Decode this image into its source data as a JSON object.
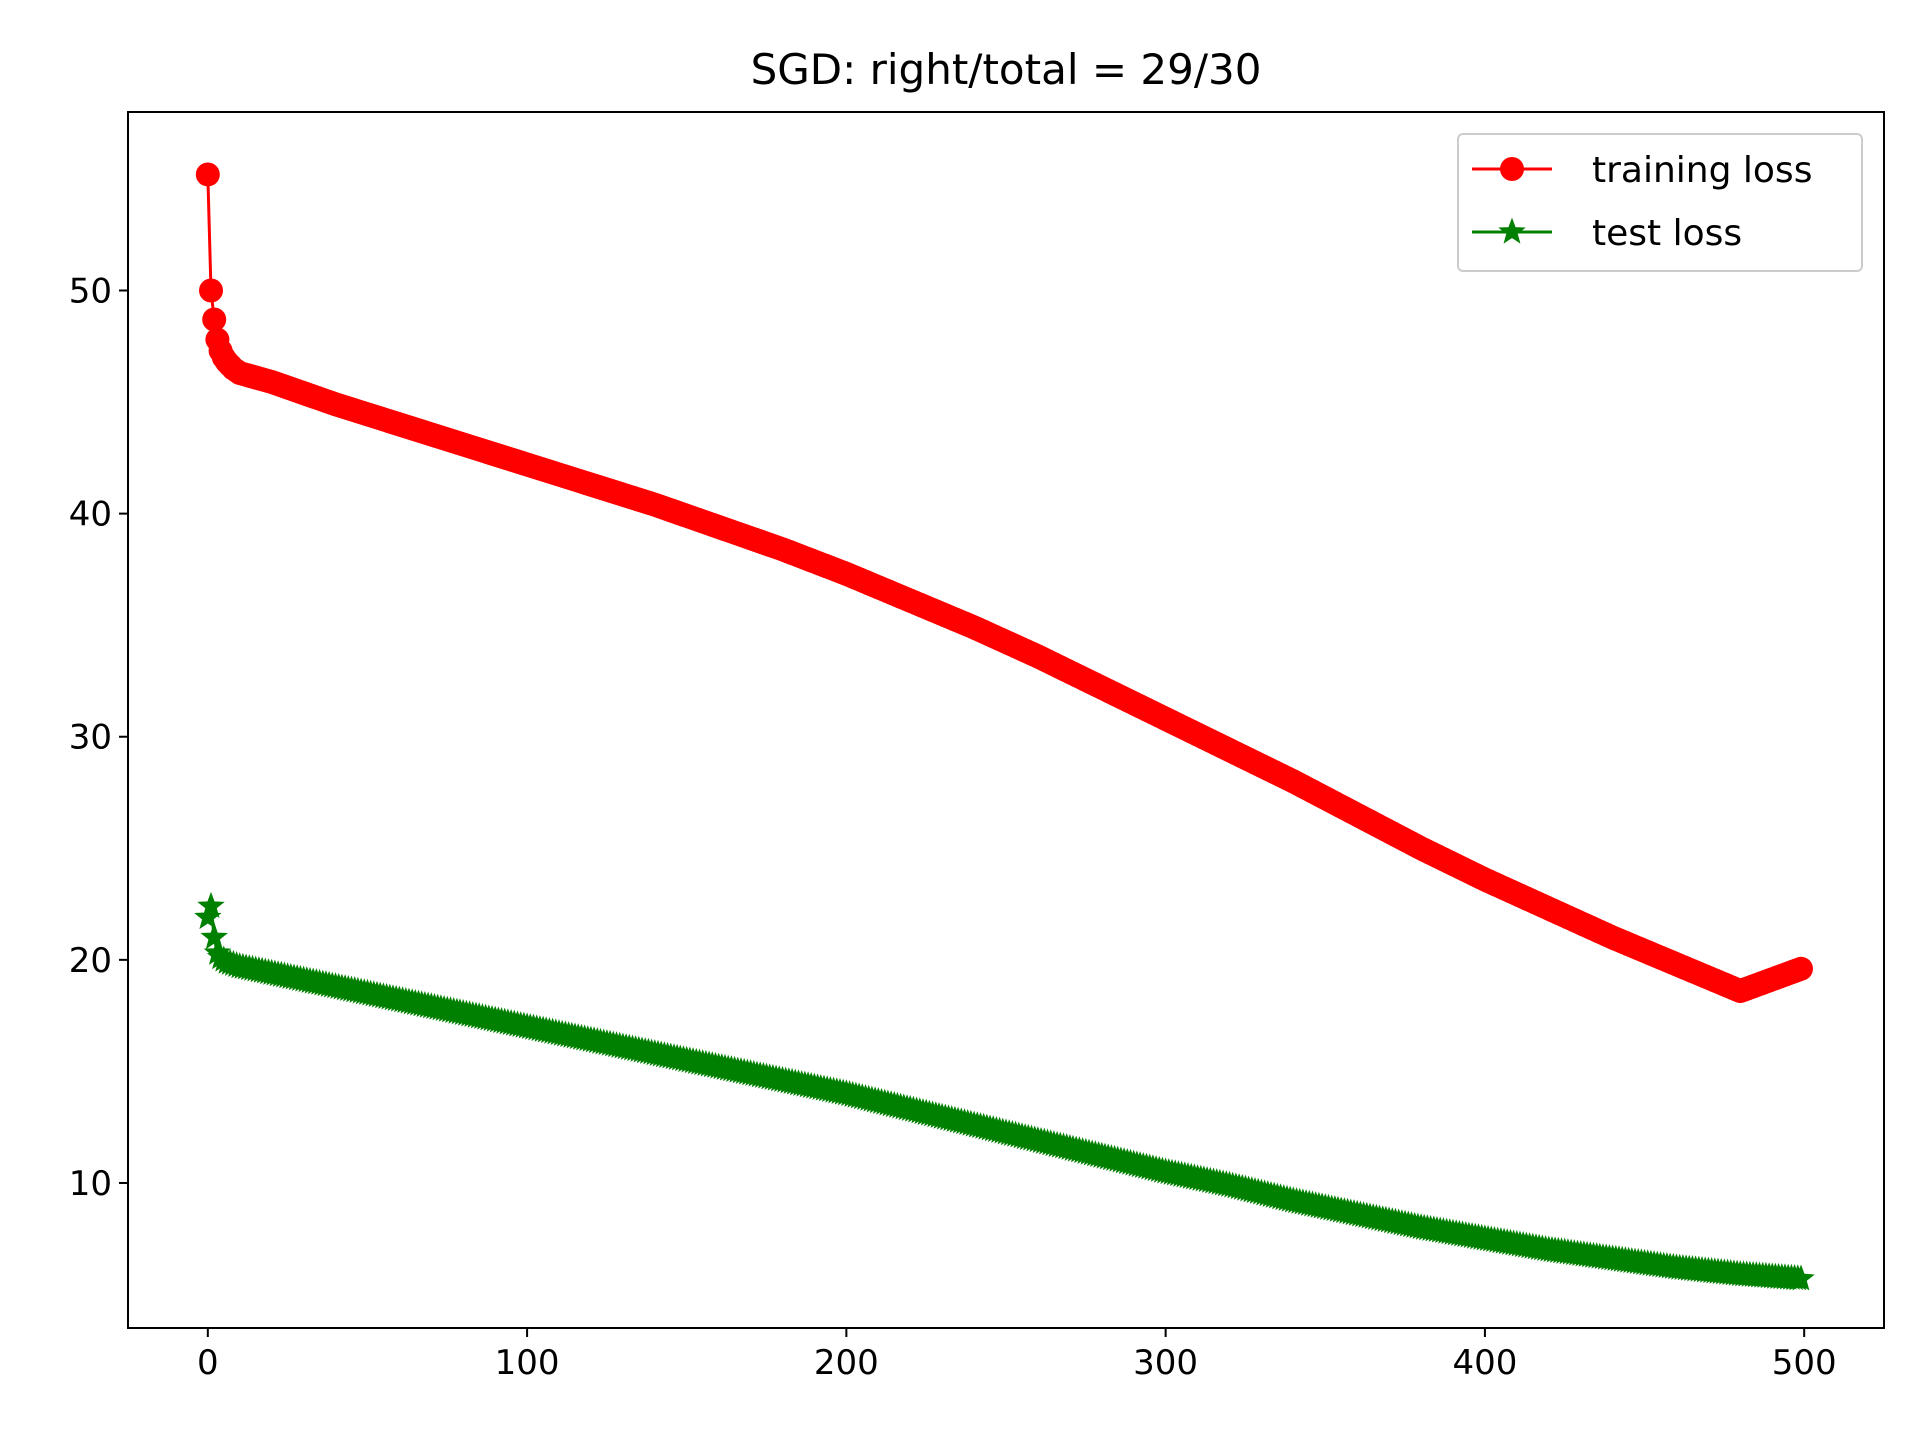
{
  "chart_data": {
    "type": "line",
    "title": "SGD: right/total = 29/30",
    "xlabel": "",
    "ylabel": "",
    "xlim": [
      -25,
      525
    ],
    "ylim": [
      3.5,
      58
    ],
    "xticks": [
      0,
      100,
      200,
      300,
      400,
      500
    ],
    "yticks": [
      10,
      20,
      30,
      40,
      50
    ],
    "grid": false,
    "legend_position": "upper right",
    "series": [
      {
        "name": "training loss",
        "color": "#ff0000",
        "marker": "circle",
        "x": [
          0,
          1,
          2,
          3,
          4,
          5,
          6,
          8,
          10,
          20,
          40,
          60,
          80,
          100,
          120,
          140,
          160,
          180,
          200,
          220,
          240,
          260,
          280,
          300,
          320,
          340,
          360,
          380,
          400,
          420,
          440,
          460,
          480,
          499
        ],
        "y": [
          55.2,
          50.0,
          48.7,
          47.8,
          47.3,
          47.0,
          46.8,
          46.5,
          46.3,
          45.9,
          44.9,
          44.0,
          43.1,
          42.2,
          41.3,
          40.4,
          39.4,
          38.4,
          37.3,
          36.1,
          34.9,
          33.6,
          32.2,
          30.8,
          29.4,
          28.0,
          26.5,
          25.0,
          23.6,
          22.3,
          21.0,
          19.8,
          18.6,
          19.6
        ]
      },
      {
        "name": "test loss",
        "color": "#008000",
        "marker": "star",
        "x": [
          0,
          1,
          2,
          3,
          4,
          5,
          6,
          8,
          10,
          20,
          40,
          60,
          80,
          100,
          120,
          140,
          160,
          180,
          200,
          220,
          240,
          260,
          280,
          300,
          320,
          340,
          360,
          380,
          400,
          420,
          440,
          460,
          480,
          499
        ],
        "y": [
          21.9,
          22.4,
          21.0,
          20.3,
          20.1,
          20.0,
          19.9,
          19.8,
          19.7,
          19.4,
          18.8,
          18.2,
          17.6,
          17.0,
          16.4,
          15.8,
          15.2,
          14.6,
          14.0,
          13.3,
          12.6,
          11.9,
          11.2,
          10.5,
          9.9,
          9.2,
          8.6,
          8.0,
          7.5,
          7.0,
          6.6,
          6.2,
          5.9,
          5.7
        ]
      }
    ]
  }
}
